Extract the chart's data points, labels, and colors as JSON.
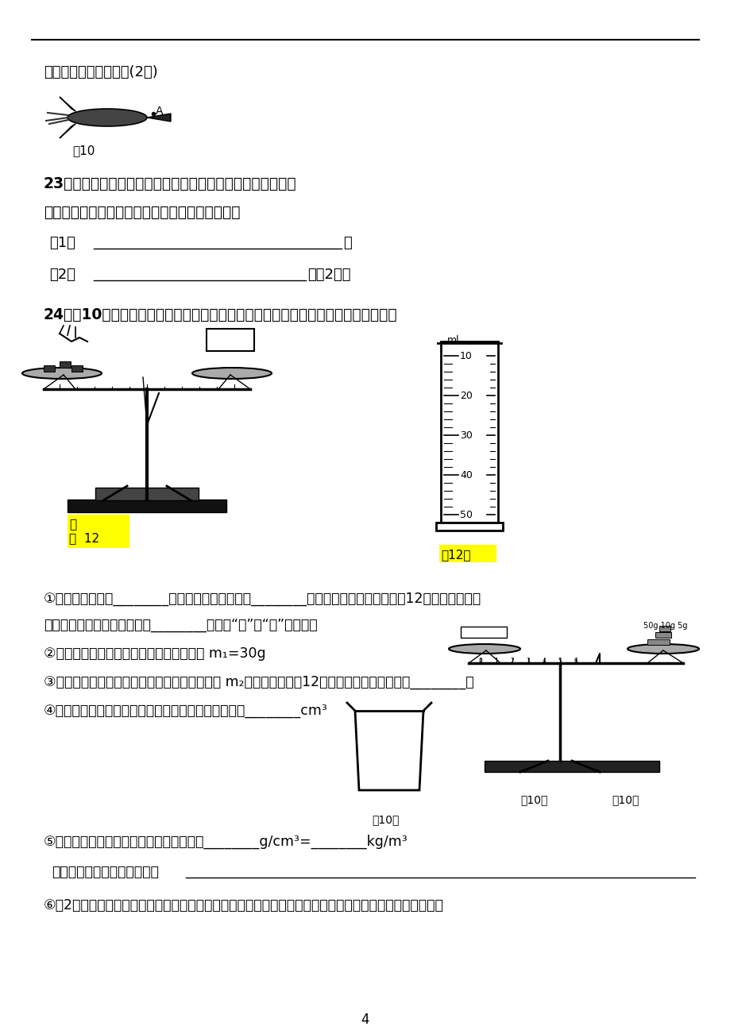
{
  "bg_color": "#ffffff",
  "page_number": "4",
  "line1_text": "竖直方向上受到的力。(2分)",
  "fig10_label": "图10",
  "q23_line1": "23．某同学用已调节好的托盘天平测量物体的质量，操作情况",
  "q23_line2": "如右图所示，请指出其中的错误是哪些，并改正：",
  "q24_line1": "24。（10）小红利用天平，量筒和一个无刻度的小烧杯来测定某度她进行的实验操作",
  "fig12_jia_label": "图  12",
  "fig12_jia_label2": "甲",
  "fig12_yi_label": "图12乙",
  "q24_step1": "①将托盘天平放在________上，将游码放在标尺的________处，发现天平指针静止在图12甲所示位置，要",
  "q24_step1b": "使天平平衡，应将平衡螺母向________（选填“左”或“右”）旋动。",
  "q24_step2": "②调节好天平后，用天平测出空烧杯的质量 m₁=30g",
  "q24_step3": "③在烧杯里倒入适量的待测液体，测出其总质量 m₂，测量结果如图12乙所示，则液体的质量是________。",
  "q24_step4": "④把烧杯中的液体全部倒入量筒中，测出液体的体积是________cm³",
  "fig10_jia_label": "图10甲",
  "fig10_yi_label": "图10乙",
  "q24_step5": "⑤根据上述实验结果可知这种液体的密度是________g/cm³=________kg/m³",
  "q24_xiaohong_prefix": "小红在实验操作中的缺点是：",
  "q24_step6": "⑥（2分）做完实验后，小红整理实验器材时发现天平的平衡螺母生锈（质量变大），这种情况对实验的影响"
}
